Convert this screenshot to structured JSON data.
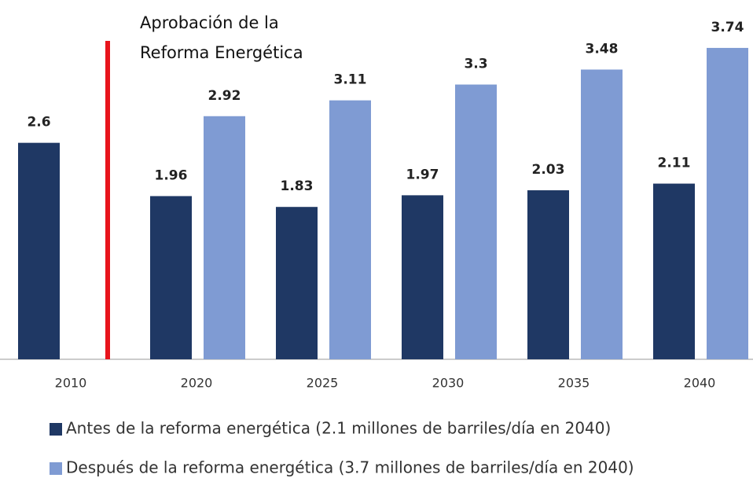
{
  "chart_data": {
    "type": "bar",
    "annotation": [
      "Aprobación de la",
      "Reforma Energética"
    ],
    "categories": [
      "2010",
      "2020",
      "2025",
      "2030",
      "2035",
      "2040"
    ],
    "series": [
      {
        "name": "Antes de la reforma energética (2.1 millones de barriles/día en 2040)",
        "color": "#1f3864",
        "values": [
          2.6,
          1.96,
          1.83,
          1.97,
          2.03,
          2.11
        ]
      },
      {
        "name": "Después de la reforma energética (3.7 millones de barriles/día en 2040)",
        "color": "#7f9bd3",
        "values": [
          null,
          2.92,
          3.11,
          3.3,
          3.48,
          3.74
        ]
      }
    ],
    "ylim": [
      0,
      4
    ],
    "marker_color": "#e8141c"
  }
}
